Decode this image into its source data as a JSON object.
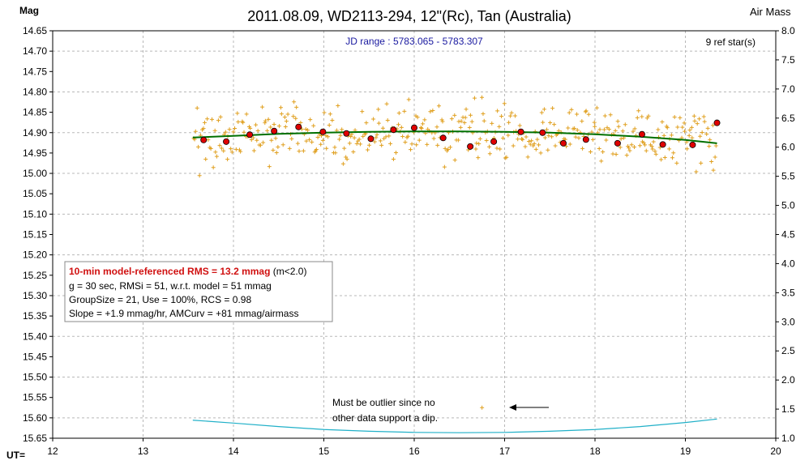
{
  "chart_data": {
    "type": "scatter",
    "title": "2011.08.09, WD2113-294, 12\"(Rc), Tan (Australia)",
    "ylabel": "Mag",
    "y2label": "Air Mass",
    "xlabel": "UT=",
    "jd_range": "JD range : 5783.065 - 5783.307",
    "ref_stars": "9 ref star(s)",
    "xlim": [
      12,
      20
    ],
    "ylim": [
      15.65,
      14.65
    ],
    "y2lim": [
      1.0,
      8.0
    ],
    "x_ticks": [
      12,
      13,
      14,
      15,
      16,
      17,
      18,
      19,
      20
    ],
    "y_ticks": [
      "14.65",
      "14.70",
      "14.75",
      "14.80",
      "14.85",
      "14.90",
      "14.95",
      "15.00",
      "15.05",
      "15.10",
      "15.15",
      "15.20",
      "15.25",
      "15.30",
      "15.35",
      "15.40",
      "15.45",
      "15.50",
      "15.55",
      "15.60",
      "15.65"
    ],
    "y2_ticks": [
      "8.0",
      "7.5",
      "7.0",
      "6.5",
      "6.0",
      "5.5",
      "5.0",
      "4.5",
      "4.0",
      "3.5",
      "3.0",
      "2.5",
      "2.0",
      "1.5",
      "1.0"
    ],
    "grid": true,
    "colors": {
      "raw": "#e0a020",
      "binned": "#e00000",
      "model": "#007000",
      "airmass": "#20b0c8",
      "arrow": "#000000"
    },
    "series": [
      {
        "kind": "raw_points",
        "x_range": [
          13.55,
          19.35
        ],
        "count": 420,
        "mag_center": 14.91,
        "mag_scatter": 0.05
      },
      {
        "kind": "binned_10min",
        "x": [
          13.67,
          13.92,
          14.18,
          14.45,
          14.72,
          14.99,
          15.25,
          15.52,
          15.77,
          16.0,
          16.32,
          16.62,
          16.88,
          17.18,
          17.42,
          17.65,
          17.9,
          18.25,
          18.52,
          18.75,
          19.08,
          19.35
        ],
        "y": [
          14.918,
          14.922,
          14.905,
          14.896,
          14.886,
          14.898,
          14.902,
          14.915,
          14.893,
          14.888,
          14.913,
          14.934,
          14.922,
          14.898,
          14.9,
          14.926,
          14.917,
          14.926,
          14.904,
          14.929,
          14.93,
          14.876
        ]
      },
      {
        "kind": "model",
        "x": [
          13.55,
          14.0,
          14.5,
          15.0,
          15.5,
          16.0,
          16.5,
          17.0,
          17.5,
          18.0,
          18.5,
          19.0,
          19.35
        ],
        "y": [
          14.912,
          14.908,
          14.903,
          14.9,
          14.898,
          14.897,
          14.897,
          14.898,
          14.9,
          14.904,
          14.91,
          14.918,
          14.926
        ]
      },
      {
        "kind": "airmass",
        "x": [
          13.55,
          14.0,
          14.5,
          15.0,
          15.5,
          16.0,
          16.5,
          17.0,
          17.5,
          18.0,
          18.5,
          19.0,
          19.35
        ],
        "airmass": [
          1.31,
          1.26,
          1.2,
          1.15,
          1.12,
          1.1,
          1.095,
          1.1,
          1.12,
          1.15,
          1.2,
          1.27,
          1.33
        ]
      },
      {
        "kind": "outlier",
        "x": [
          16.75
        ],
        "y": [
          15.575
        ]
      }
    ],
    "annotation": {
      "lines": [
        "Must be outlier since no",
        "other data support a dip."
      ]
    },
    "info_box": {
      "rms_label": "10-min model-referenced RMS = 13.2 mmag",
      "rms_cond": " (m<2.0)",
      "line2": "g = 30 sec, RMSi = 51, w.r.t. model = 51 mmag",
      "line3": "GroupSize = 21, Use = 100%, RCS = 0.98",
      "line4": "Slope = +1.9 mmag/hr, AMCurv = +81 mmag/airmass"
    }
  }
}
